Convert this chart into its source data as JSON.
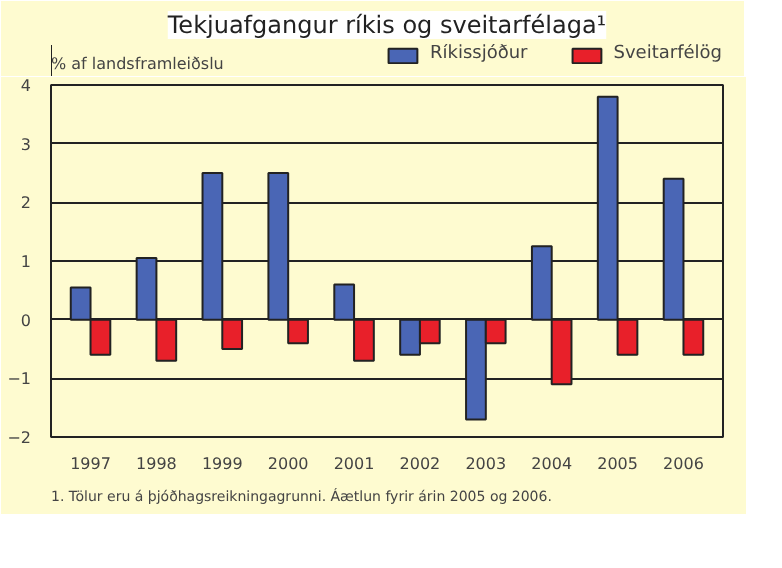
{
  "chart_data": {
    "type": "bar",
    "title": "Tekjuafgangur ríkis og sveitarfélaga¹",
    "ylabel": "% af landsframleiðslu",
    "categories": [
      "1997",
      "1998",
      "1999",
      "2000",
      "2001",
      "2002",
      "2003",
      "2004",
      "2005",
      "2006"
    ],
    "series": [
      {
        "name": "Ríkissjóður",
        "color": "#4a66b5",
        "values": [
          0.55,
          1.05,
          2.5,
          2.5,
          0.6,
          -0.6,
          -1.7,
          1.25,
          3.8,
          2.4
        ]
      },
      {
        "name": "Sveitarfélög",
        "color": "#e8202a",
        "values": [
          -0.6,
          -0.7,
          -0.5,
          -0.4,
          -0.7,
          -0.4,
          -0.4,
          -1.1,
          -0.6,
          -0.6
        ]
      }
    ],
    "ylim": [
      -2,
      4
    ],
    "yticks": [
      -2,
      -1,
      0,
      1,
      2,
      3,
      4
    ],
    "grid": "y",
    "legend": "top right",
    "annotations": [
      "1. Tölur eru á þjóðhagsreikningagrunni. Áætlun fyrir árin 2005 og 2006."
    ]
  }
}
